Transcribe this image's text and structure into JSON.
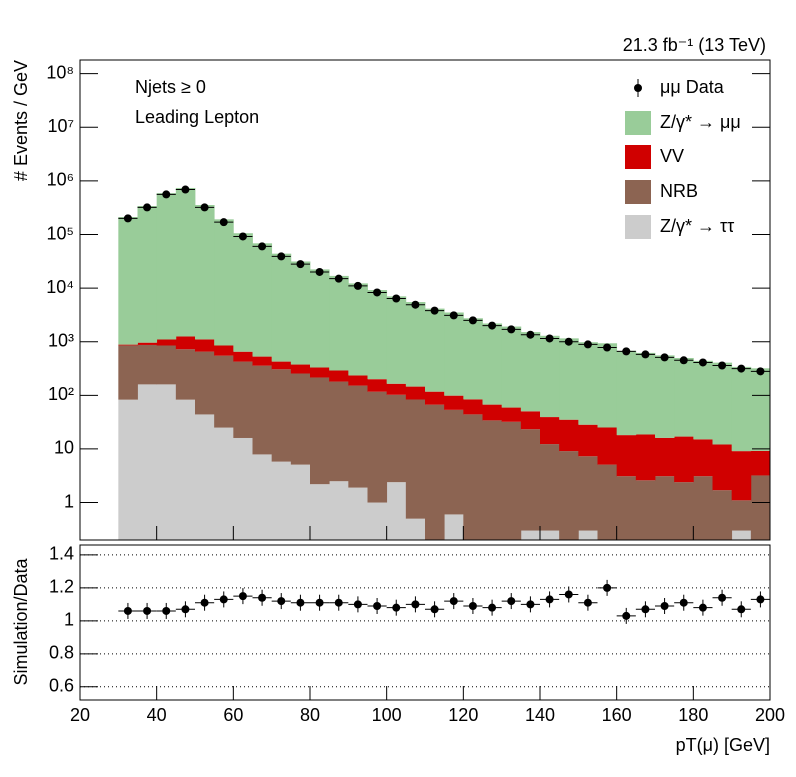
{
  "chart_data": [
    {
      "type": "stacked-histogram",
      "annotation_right": "21.3 fb⁻¹ (13 TeV)",
      "annotations": [
        "Njets ≥ 0",
        "Leading Lepton"
      ],
      "y_label": "# Events / GeV",
      "log_y": true,
      "ylim": [
        0.2,
        180000000
      ],
      "yticks": [
        1,
        10,
        {
          "value": 100,
          "label": "10²"
        },
        {
          "value": 1000,
          "label": "10³"
        },
        {
          "value": 10000,
          "label": "10⁴"
        },
        {
          "value": 100000,
          "label": "10⁵"
        },
        {
          "value": 1000000,
          "label": "10⁶"
        },
        {
          "value": 10000000,
          "label": "10⁷"
        },
        {
          "value": 100000000,
          "label": "10⁸"
        }
      ],
      "xlim": [
        20,
        200
      ],
      "xticks": [
        20,
        40,
        60,
        80,
        100,
        120,
        140,
        160,
        180,
        200
      ],
      "bins": [
        30,
        35,
        40,
        45,
        50,
        55,
        60,
        65,
        70,
        75,
        80,
        85,
        90,
        95,
        100,
        105,
        110,
        115,
        120,
        125,
        130,
        135,
        140,
        145,
        150,
        155,
        160,
        165,
        170,
        175,
        180,
        185,
        190,
        195,
        200
      ],
      "data": {
        "name": "μμ Data",
        "color": "#000000",
        "x": [
          32.5,
          37.5,
          42.5,
          47.5,
          52.5,
          57.5,
          62.5,
          67.5,
          72.5,
          77.5,
          82.5,
          87.5,
          92.5,
          97.5,
          102.5,
          107.5,
          112.5,
          117.5,
          122.5,
          127.5,
          132.5,
          137.5,
          142.5,
          147.5,
          152.5,
          157.5,
          162.5,
          167.5,
          172.5,
          177.5,
          182.5,
          187.5,
          192.5,
          197.5
        ],
        "values": [
          200000,
          320000,
          560000,
          690000,
          320000,
          170000,
          92000,
          60000,
          39000,
          28000,
          20000,
          15000,
          11000,
          8300,
          6400,
          4900,
          3800,
          3100,
          2500,
          2000,
          1700,
          1350,
          1150,
          1000,
          890,
          780,
          660,
          580,
          510,
          450,
          410,
          360,
          315,
          280
        ]
      },
      "series": [
        {
          "name": "Z/γ* → μμ",
          "color": "#99cc99",
          "values": [
            211000,
            339000,
            589000,
            737000,
            354000,
            191000,
            105000,
            68000,
            43500,
            31000,
            22000,
            16600,
            12000,
            9000,
            6850,
            5350,
            4030,
            3410,
            2650,
            2120,
            1860,
            1460,
            1250,
            1120,
            950,
            910,
            660,
            600,
            540,
            480,
            425,
            395,
            330,
            310
          ]
        },
        {
          "name": "VV",
          "color": "#d00000",
          "values": [
            30,
            90,
            250,
            530,
            450,
            300,
            225,
            170,
            120,
            120,
            115,
            110,
            83,
            83,
            62,
            62,
            50,
            45,
            40,
            33,
            27,
            27,
            27,
            26,
            21,
            20,
            15,
            16,
            13,
            14.6,
            12,
            10.4,
            8,
            6
          ]
        },
        {
          "name": "NRB",
          "color": "#8c6452",
          "values": [
            770,
            710,
            690,
            640,
            610,
            525,
            410,
            350,
            300,
            250,
            213,
            178,
            150,
            116,
            100,
            83,
            67,
            53,
            44,
            34,
            32,
            23,
            12,
            9,
            7,
            5,
            3,
            2.5,
            3,
            2.3,
            3,
            1.6,
            0.8,
            3.1
          ]
        },
        {
          "name": "Z/γ* → ττ",
          "color": "#cccccc",
          "values": [
            83,
            160,
            160,
            83,
            44,
            25,
            16,
            7.9,
            5.8,
            5.1,
            2.2,
            2.5,
            1.9,
            1.0,
            2.4,
            0.5,
            0,
            0.6,
            0.1,
            0.1,
            0.1,
            0.3,
            0.3,
            0.1,
            0.3,
            0.1,
            0.1,
            0.1,
            0.1,
            0.1,
            0.1,
            0.1,
            0.3,
            0.1
          ]
        }
      ]
    },
    {
      "type": "ratio",
      "y_label": "Simulation/Data",
      "x_label": "pT(μ) [GeV]",
      "ylim": [
        0.52,
        1.46
      ],
      "yticks": [
        0.6,
        0.8,
        1,
        1.2,
        1.4
      ],
      "grid": true,
      "xlim": [
        20,
        200
      ],
      "xticks": [
        20,
        40,
        60,
        80,
        100,
        120,
        140,
        160,
        180,
        200
      ],
      "x": [
        32.5,
        37.5,
        42.5,
        47.5,
        52.5,
        57.5,
        62.5,
        67.5,
        72.5,
        77.5,
        82.5,
        87.5,
        92.5,
        97.5,
        102.5,
        107.5,
        112.5,
        117.5,
        122.5,
        127.5,
        132.5,
        137.5,
        142.5,
        147.5,
        152.5,
        157.5,
        162.5,
        167.5,
        172.5,
        177.5,
        182.5,
        187.5,
        192.5,
        197.5
      ],
      "values": [
        1.06,
        1.06,
        1.06,
        1.07,
        1.11,
        1.13,
        1.15,
        1.14,
        1.12,
        1.11,
        1.11,
        1.11,
        1.1,
        1.09,
        1.08,
        1.1,
        1.07,
        1.12,
        1.09,
        1.08,
        1.12,
        1.1,
        1.13,
        1.16,
        1.11,
        1.2,
        1.03,
        1.07,
        1.09,
        1.11,
        1.08,
        1.14,
        1.07,
        1.13
      ]
    }
  ]
}
